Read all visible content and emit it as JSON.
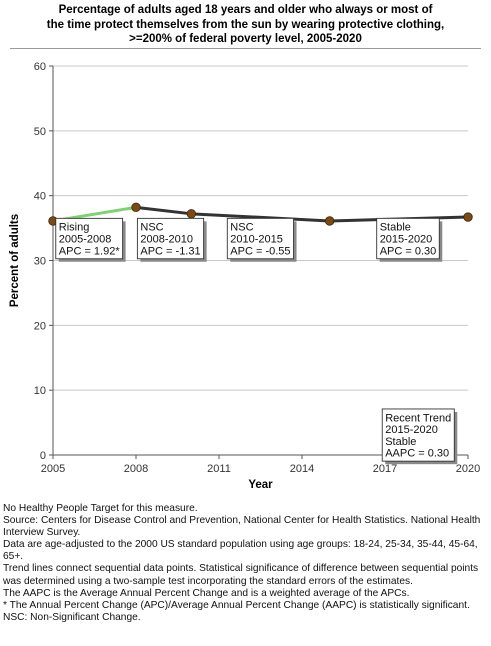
{
  "title_lines": [
    "Percentage of adults aged 18 years and older who always or most of",
    "the time protect themselves from the sun by wearing protective clothing,",
    ">=200% of federal poverty level,  2005-2020"
  ],
  "chart_data": {
    "type": "line",
    "title": "Percentage of adults aged 18 years and older who always or most of the time protect themselves from the sun by wearing protective clothing, >=200% of federal poverty level,  2005-2020",
    "xlabel": "Year",
    "ylabel": "Percent of adults",
    "xlim": [
      2005,
      2020
    ],
    "ylim": [
      0,
      60
    ],
    "x_ticks": [
      2005,
      2008,
      2011,
      2014,
      2017,
      2020
    ],
    "x_tick_labels": [
      "2005",
      "2008",
      "2011",
      "2014",
      "2017",
      "2020"
    ],
    "y_ticks": [
      0,
      10,
      20,
      30,
      40,
      50,
      60
    ],
    "y_tick_labels": [
      "0",
      "10",
      "20",
      "30",
      "40",
      "50",
      "60"
    ],
    "grid": true,
    "series": [
      {
        "x": [
          2005,
          2008,
          2010,
          2015,
          2020
        ],
        "values": [
          36.1,
          38.2,
          37.2,
          36.1,
          36.7
        ]
      }
    ],
    "segments": [
      {
        "from": 2005,
        "to": 2008,
        "color": "#7dd36f"
      },
      {
        "from": 2008,
        "to": 2020,
        "color": "#333333"
      }
    ],
    "point_color": "#7a4a12",
    "annotations": [
      {
        "lines": [
          "Rising",
          "2005-2008",
          "APC =  1.92*"
        ],
        "x": 2005.1,
        "y": 36.5
      },
      {
        "lines": [
          "NSC",
          "2008-2010",
          "APC = -1.31"
        ],
        "x": 2008.05,
        "y": 36.5
      },
      {
        "lines": [
          "NSC",
          "2010-2015",
          "APC = -0.55"
        ],
        "x": 2011.3,
        "y": 36.5
      },
      {
        "lines": [
          "Stable",
          "2015-2020",
          "APC =  0.30"
        ],
        "x": 2016.7,
        "y": 36.5
      },
      {
        "lines": [
          "Recent Trend",
          "2015-2020",
          "Stable",
          "AAPC =  0.30"
        ],
        "x": 2016.9,
        "y": 7.1
      }
    ]
  },
  "footnotes": [
    "No Healthy People Target for this measure.",
    "Source: Centers for Disease Control and Prevention, National Center for Health Statistics. National Health Interview Survey.",
    "Data are age-adjusted to the 2000 US standard population using age groups: 18-24, 25-34, 35-44, 45-64, 65+.",
    "Trend lines connect sequential data points. Statistical significance of difference between sequential points was determined using a two-sample test incorporating the standard errors of the estimates.",
    "The AAPC is the Average Annual Percent Change and is a weighted average of the APCs.",
    "* The Annual Percent Change (APC)/Average Annual Percent Change (AAPC) is statistically significant.",
    "NSC: Non-Significant Change."
  ]
}
